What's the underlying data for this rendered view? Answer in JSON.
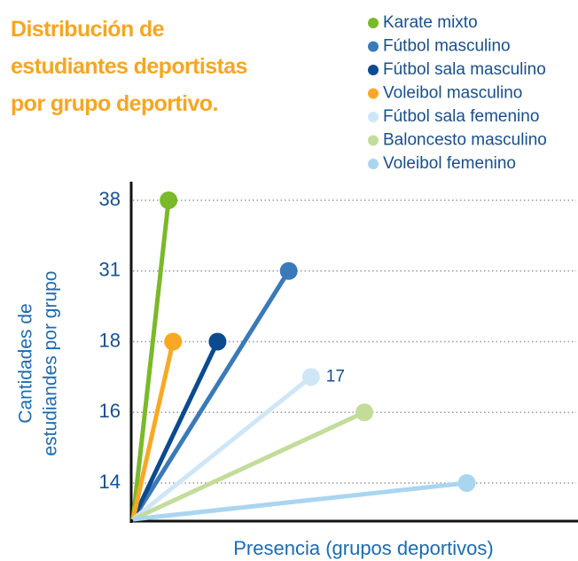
{
  "chart_data": {
    "type": "line",
    "title": [
      "Distribución de",
      "estudiantes deportistas",
      "por grupo deportivo."
    ],
    "xlabel": "Presencia (grupos deportivos)",
    "ylabel": [
      "Cantidades de",
      "estudiandes por grupo"
    ],
    "xlim": [
      0,
      100
    ],
    "ylim": [
      14,
      38
    ],
    "yticks": [
      14,
      16,
      18,
      31,
      38
    ],
    "grid": true,
    "legend": "top-right",
    "series": [
      {
        "name": "Karate mixto",
        "color": "#7ab929",
        "x": [
          8
        ],
        "values": [
          38
        ]
      },
      {
        "name": "Fútbol masculino",
        "color": "#3a7ab8",
        "x": [
          35
        ],
        "values": [
          31
        ]
      },
      {
        "name": "Fútbol sala masculino",
        "color": "#0b4a8f",
        "x": [
          19
        ],
        "values": [
          18
        ]
      },
      {
        "name": "Voleibol masculino",
        "color": "#f9a825",
        "x": [
          9
        ],
        "values": [
          18
        ]
      },
      {
        "name": "Fútbol sala femenino",
        "color": "#cfe6f7",
        "x": [
          40
        ],
        "values": [
          17
        ],
        "show_value": true
      },
      {
        "name": "Baloncesto masculino",
        "color": "#c3dc9a",
        "x": [
          52
        ],
        "values": [
          16
        ]
      },
      {
        "name": "Voleibol femenino",
        "color": "#a9d5f0",
        "x": [
          75
        ],
        "values": [
          14
        ]
      }
    ]
  }
}
